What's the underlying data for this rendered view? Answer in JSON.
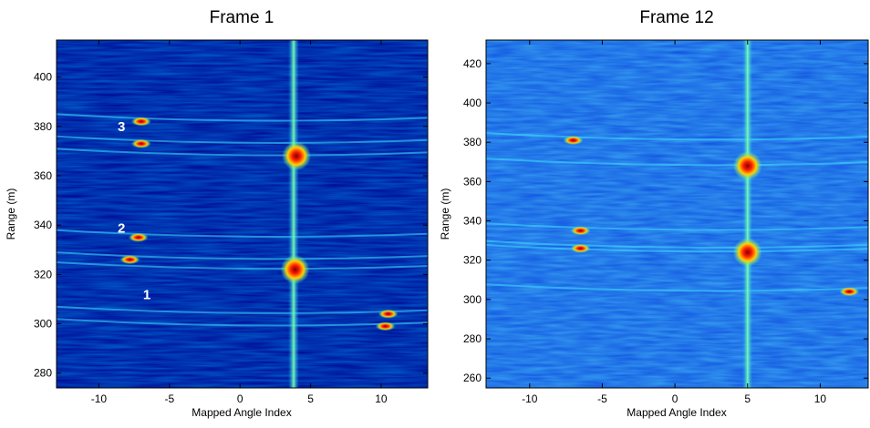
{
  "chart_data": [
    {
      "type": "heatmap",
      "title": "Frame 1",
      "xlabel": "Mapped Angle Index",
      "ylabel": "Range (m)",
      "xlim": [
        -13,
        13.3
      ],
      "ylim": [
        274,
        415
      ],
      "xticks": [
        -10,
        -5,
        0,
        5,
        10
      ],
      "yticks": [
        280,
        300,
        320,
        340,
        360,
        380,
        400
      ],
      "colormap": "jet",
      "colors": {
        "low": "#00008f",
        "high": "#800000"
      },
      "annotations": [
        {
          "text": "3",
          "x": -8.4,
          "y": 378
        },
        {
          "text": "2",
          "x": -8.4,
          "y": 337
        },
        {
          "text": "1",
          "x": -6.6,
          "y": 310
        }
      ],
      "features": {
        "vertical_streak_x": 3.8,
        "hot_spots": [
          {
            "x": 4.0,
            "y": 368
          },
          {
            "x": 3.9,
            "y": 322
          },
          {
            "x": -7.0,
            "y": 382
          },
          {
            "x": -7.0,
            "y": 373
          },
          {
            "x": -7.2,
            "y": 335
          },
          {
            "x": -7.8,
            "y": 326
          },
          {
            "x": 10.5,
            "y": 304
          },
          {
            "x": 10.3,
            "y": 299
          }
        ]
      }
    },
    {
      "type": "heatmap",
      "title": "Frame 12",
      "xlabel": "Mapped Angle Index",
      "ylabel": "Range (m)",
      "xlim": [
        -13,
        13.3
      ],
      "ylim": [
        255,
        432
      ],
      "xticks": [
        -10,
        -5,
        0,
        5,
        10
      ],
      "yticks": [
        260,
        280,
        300,
        320,
        340,
        360,
        380,
        400,
        420
      ],
      "colormap": "jet",
      "colors": {
        "low": "#00008f",
        "high": "#800000"
      },
      "features": {
        "vertical_streak_x": 5.0,
        "hot_spots": [
          {
            "x": 5.0,
            "y": 368
          },
          {
            "x": 5.0,
            "y": 324
          },
          {
            "x": -7.0,
            "y": 381
          },
          {
            "x": -6.5,
            "y": 335
          },
          {
            "x": -6.5,
            "y": 326
          },
          {
            "x": 12.0,
            "y": 304
          }
        ]
      }
    }
  ]
}
